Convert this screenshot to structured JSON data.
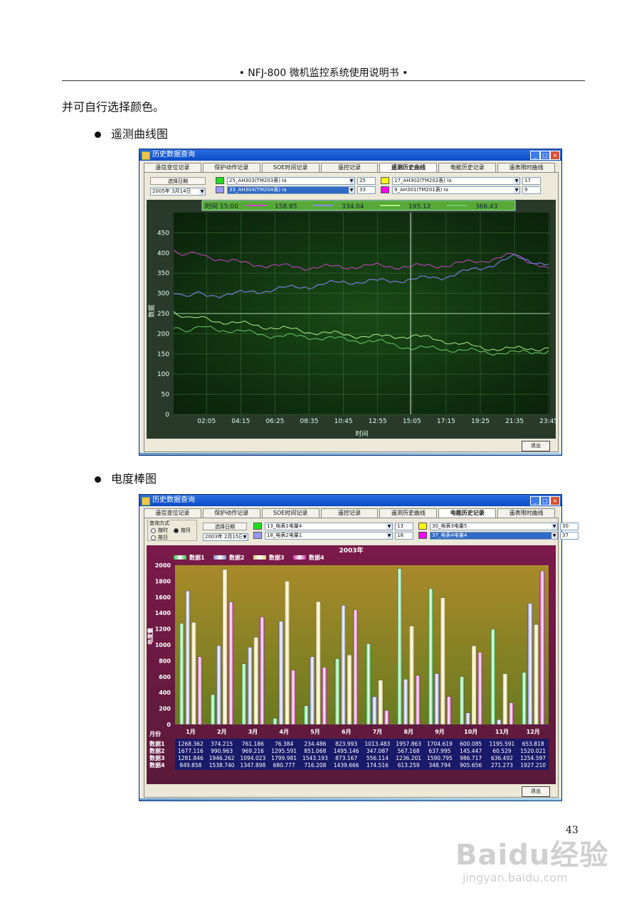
{
  "page": {
    "header": "• NFJ-800 微机监控系统使用说明书 •",
    "intro": "并可自行选择颜色。",
    "section1": "遥测曲线图",
    "section2": "电度棒图",
    "page_number": "43",
    "watermark": {
      "logo": "Baidu经验",
      "url": "jingyan.baidu.com"
    }
  },
  "window1": {
    "title": "历史数据查询",
    "tabs": [
      "遥信变位记录",
      "保护动作记录",
      "SOE时间记录",
      "遥控记录",
      "遥测历史曲线",
      "电能历史记录",
      "遥表限时曲线"
    ],
    "active_tab": 4,
    "select_date_label": "选择日期",
    "date_value": "2005年 3月14日",
    "channels": [
      {
        "color": "#22dd22",
        "name": "25_AH303(TM203表) Ia",
        "num": "25"
      },
      {
        "color": "#9999ff",
        "name": "33_AH304(TM204表) Ia",
        "num": "33",
        "selected": true
      },
      {
        "color": "#ffff00",
        "name": "17_AH302(TM202表) Ia",
        "num": "17"
      },
      {
        "color": "#ff00ff",
        "name": "9_AH301(TM201表) Ia",
        "num": "9"
      }
    ],
    "cursor_readout": {
      "time_label": "时间",
      "time": "15:00",
      "values": [
        "158.85",
        "334.04",
        "195.12",
        "366.43"
      ]
    },
    "exit_label": "退出"
  },
  "chart_data": [
    {
      "type": "line",
      "xlabel": "时间",
      "ylabel": "数据",
      "ylim": [
        0,
        500
      ],
      "yticks": [
        0,
        50,
        100,
        150,
        200,
        250,
        300,
        350,
        400,
        450
      ],
      "xticks": [
        "02:05",
        "04:15",
        "06:25",
        "08:35",
        "10:45",
        "12:55",
        "15:05",
        "17:15",
        "19:25",
        "21:35",
        "23:45"
      ],
      "grid": true,
      "cursor_x": "15:00",
      "reference_y": 250,
      "series": [
        {
          "color": "#cc44cc",
          "x": [
            "00:00",
            "02:05",
            "04:15",
            "06:25",
            "08:35",
            "10:45",
            "12:55",
            "15:05",
            "17:15",
            "19:25",
            "21:35",
            "23:45"
          ],
          "values": [
            405,
            392,
            375,
            368,
            364,
            366,
            368,
            366,
            370,
            380,
            395,
            362
          ]
        },
        {
          "color": "#8888ff",
          "x": [
            "00:00",
            "02:05",
            "04:15",
            "06:25",
            "08:35",
            "10:45",
            "12:55",
            "15:05",
            "17:15",
            "19:25",
            "21:35",
            "23:45"
          ],
          "values": [
            300,
            295,
            300,
            310,
            318,
            328,
            330,
            334,
            342,
            362,
            390,
            372
          ]
        },
        {
          "color": "#aaee88",
          "x": [
            "00:00",
            "02:05",
            "04:15",
            "06:25",
            "08:35",
            "10:45",
            "12:55",
            "15:05",
            "17:15",
            "19:25",
            "21:35",
            "23:45"
          ],
          "values": [
            250,
            235,
            225,
            215,
            205,
            198,
            192,
            195,
            182,
            165,
            162,
            165
          ]
        },
        {
          "color": "#66cc66",
          "x": [
            "00:00",
            "02:05",
            "04:15",
            "06:25",
            "08:35",
            "10:45",
            "12:55",
            "15:05",
            "17:15",
            "19:25",
            "21:35",
            "23:45"
          ],
          "values": [
            210,
            215,
            205,
            195,
            192,
            186,
            180,
            165,
            162,
            155,
            152,
            158
          ]
        }
      ]
    },
    {
      "type": "bar",
      "title": "2003年",
      "xlabel": "月份",
      "ylabel": "电度量",
      "ylim": [
        0,
        2000
      ],
      "yticks": [
        0,
        200,
        400,
        600,
        800,
        1000,
        1200,
        1400,
        1600,
        1800,
        2000
      ],
      "legend": "top-left",
      "categories": [
        "1月",
        "2月",
        "3月",
        "4月",
        "5月",
        "6月",
        "7月",
        "8月",
        "9月",
        "10月",
        "11月",
        "12月"
      ],
      "series": [
        {
          "name": "数据1",
          "color": "#33bb44",
          "values": [
            1268.362,
            374.215,
            761.186,
            76.384,
            234.486,
            823.993,
            1013.483,
            1957.863,
            1704.619,
            600.085,
            1195.591,
            653.818
          ]
        },
        {
          "name": "数据2",
          "color": "#8888cc",
          "values": [
            1677.116,
            990.963,
            969.216,
            1295.591,
            851.068,
            1495.146,
            347.087,
            567.168,
            637.995,
            145.447,
            60.529,
            1520.021
          ]
        },
        {
          "name": "数据3",
          "color": "#ddcc77",
          "values": [
            1281.846,
            1946.262,
            1094.023,
            1799.981,
            1543.193,
            873.167,
            556.114,
            1236.201,
            1590.795,
            986.717,
            636.492,
            1254.597
          ]
        },
        {
          "name": "数据4",
          "color": "#cc33aa",
          "values": [
            849.858,
            1538.74,
            1347.898,
            680.777,
            716.208,
            1439.666,
            174.516,
            613.259,
            348.794,
            905.656,
            271.273,
            1927.21
          ]
        }
      ]
    }
  ],
  "window2": {
    "title": "历史数据查询",
    "tabs": [
      "遥信变位记录",
      "保护动作记录",
      "SOE时间记录",
      "遥控记录",
      "遥测历史曲线",
      "电能历史记录",
      "遥表限时曲线"
    ],
    "active_tab": 5,
    "query_mode_label": "查询方式",
    "mode_options": [
      "按时",
      "按月",
      "按日"
    ],
    "select_date_label": "选择日期",
    "date_value": "2003年 2月15日",
    "channels": [
      {
        "color": "#22dd22",
        "name": "13_电表1电量4",
        "num": "13"
      },
      {
        "color": "#9999ff",
        "name": "18_电表2电量1",
        "num": "18"
      },
      {
        "color": "#ffff00",
        "name": "30_电表3电量5",
        "num": "30"
      },
      {
        "color": "#ff00ff",
        "name": "37_电表4电量4",
        "num": "37",
        "selected": true
      }
    ],
    "table_rows": [
      {
        "label": "数据1",
        "values": [
          "1268.362",
          "374.215",
          "761.186",
          "76.384",
          "234.486",
          "823.993",
          "1013.483",
          "1957.863",
          "1704.619",
          "600.085",
          "1195.591",
          "653.818"
        ]
      },
      {
        "label": "数据2",
        "values": [
          "1677.116",
          "990.963",
          "969.216",
          "1295.591",
          "851.068",
          "1495.146",
          "347.087",
          "567.168",
          "637.995",
          "145.447",
          "60.529",
          "1520.021"
        ]
      },
      {
        "label": "数据3",
        "values": [
          "1281.846",
          "1946.262",
          "1094.023",
          "1799.981",
          "1543.193",
          "873.167",
          "556.114",
          "1236.201",
          "1590.795",
          "986.717",
          "636.492",
          "1254.597"
        ]
      },
      {
        "label": "数据4",
        "values": [
          "849.858",
          "1538.740",
          "1347.898",
          "680.777",
          "716.208",
          "1439.666",
          "174.516",
          "613.259",
          "348.794",
          "905.656",
          "271.273",
          "1927.210"
        ]
      }
    ],
    "exit_label": "退出"
  }
}
